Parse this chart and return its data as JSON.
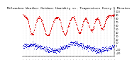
{
  "title": "Milwaukee Weather Outdoor Humidity vs. Temperature Every 5 Minutes",
  "ylim": [
    -30,
    105
  ],
  "yticks": [
    -20,
    -10,
    0,
    10,
    20,
    30,
    40,
    50,
    60,
    70,
    80,
    90,
    100
  ],
  "background_color": "#ffffff",
  "red_color": "#dd0000",
  "blue_color": "#0000cc",
  "grid_color": "#bbbbbb",
  "title_fontsize": 3.2,
  "tick_fontsize": 2.5,
  "dot_size": 0.5,
  "num_points": 400,
  "num_vgrid": 28,
  "num_xticks": 30
}
